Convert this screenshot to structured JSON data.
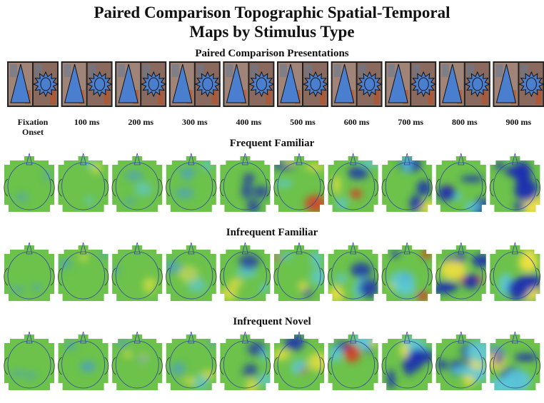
{
  "title": "Paired Comparison Topographic Spatial-Temporal Maps by Stimulus Type",
  "presentations": {
    "heading": "Paired Comparison Presentations",
    "time_labels": [
      "Fixation Onset",
      "100 ms",
      "200 ms",
      "300 ms",
      "400 ms",
      "500 ms",
      "600 ms",
      "700 ms",
      "800 ms",
      "900 ms"
    ]
  },
  "rows": [
    {
      "label": "Frequent Familiar"
    },
    {
      "label": "Infrequent Familiar"
    },
    {
      "label": "Infrequent Novel"
    }
  ]
}
